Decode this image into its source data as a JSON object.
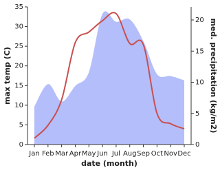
{
  "chart_data": {
    "type": "area-line",
    "categories": [
      "Jan",
      "Feb",
      "Mar",
      "Apr",
      "May",
      "Jun",
      "Jul",
      "Aug",
      "Sep",
      "Oct",
      "Nov",
      "Dec"
    ],
    "x_label": "date (month)",
    "y_label": "max temp (C)",
    "y2_label": "med. precipitation (kg/m2)",
    "ylim": [
      0,
      35
    ],
    "yticks": [
      0,
      5,
      10,
      15,
      20,
      25,
      30,
      35
    ],
    "y2lim": [
      0,
      22.1
    ],
    "y2ticks": [
      0,
      5,
      10,
      15,
      20
    ],
    "series": [
      {
        "name": "med. precipitation",
        "type": "area",
        "axis": "y2",
        "color": "#b4befa",
        "values": [
          6.1,
          9.7,
          6.9,
          9.4,
          11.6,
          21,
          19.7,
          20.1,
          16.6,
          11.3,
          11,
          10.3
        ]
      },
      {
        "name": "max temp",
        "type": "line",
        "axis": "y",
        "color": "#c8504f",
        "values": [
          1.6,
          4.9,
          11.4,
          25.9,
          28.6,
          31.5,
          33.3,
          25.7,
          25.4,
          7.9,
          5.3,
          4.0
        ]
      }
    ]
  }
}
